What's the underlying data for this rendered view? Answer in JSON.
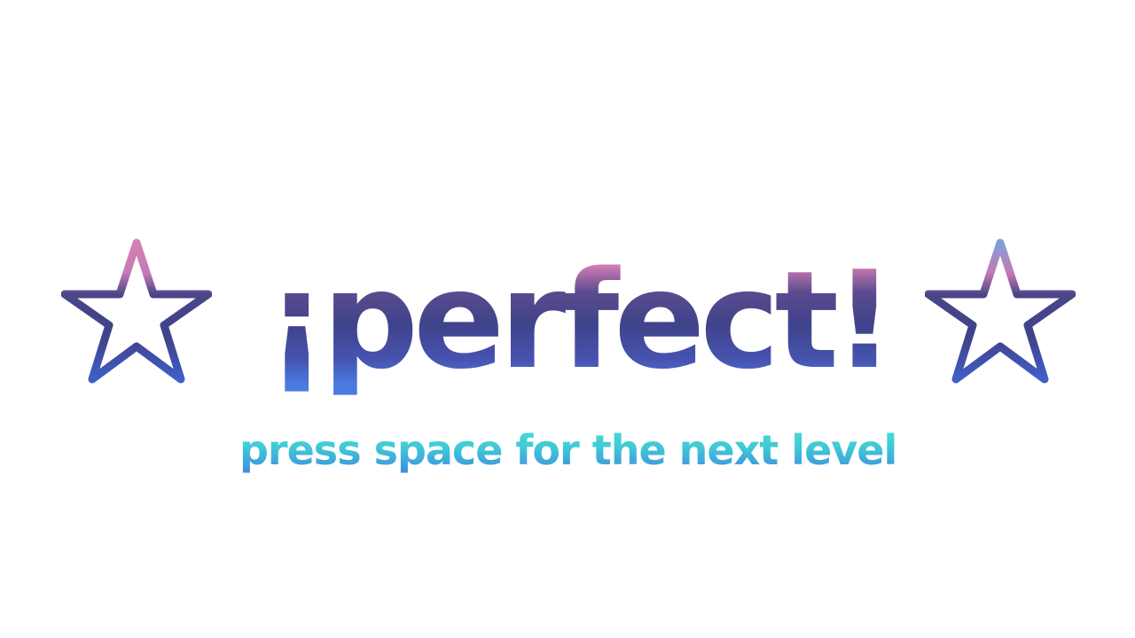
{
  "overlay": {
    "headline": "¡PERFECT!",
    "hint": "PRESS SPACE FOR THE NEXT LEVEL"
  },
  "decorations": {
    "left_icon": "star-outline-icon",
    "right_icon": "star-outline-icon"
  },
  "colors": {
    "headline_top": "#d57fb6",
    "headline_mid": "#3f438a",
    "headline_bottom": "#4b7be0",
    "hint_top": "#4fe0d2",
    "hint_bottom": "#3f7ee0",
    "star_top": "#d57fb6",
    "star_bottom": "#3f5fc8",
    "background": "#ffffff"
  }
}
